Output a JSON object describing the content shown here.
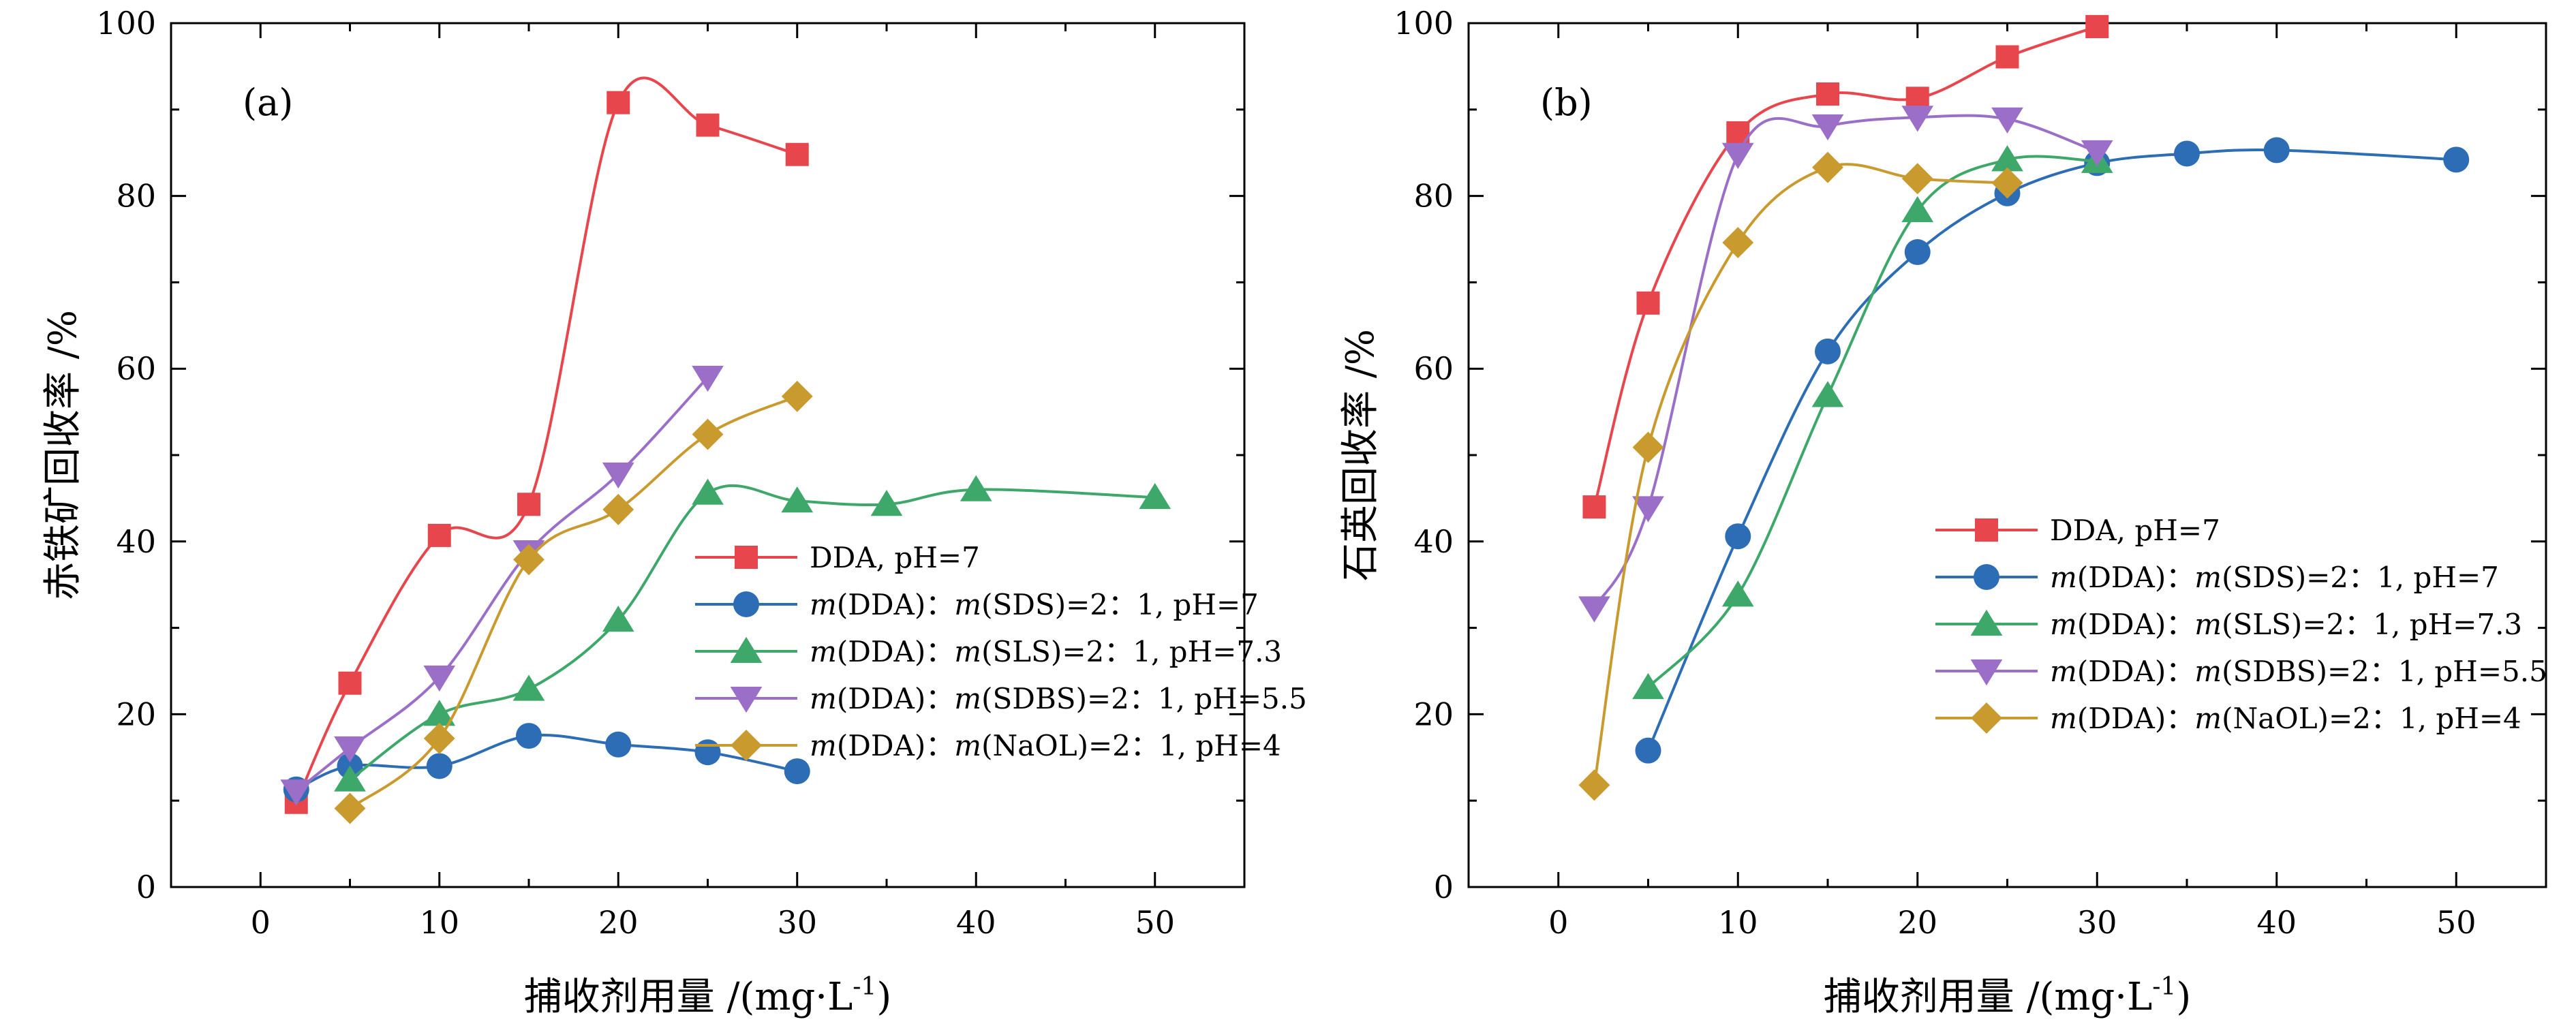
{
  "chart_data": [
    {
      "type": "scatter",
      "panel_label": "(a)",
      "xlabel": "捕收剂用量 /(mg·L",
      "xlabel_sup": "-1",
      "xlabel_close": ")",
      "ylabel": "赤铁矿回收率 /%",
      "xlim": [
        -5,
        55
      ],
      "ylim": [
        0,
        100
      ],
      "xticks": [
        0,
        10,
        20,
        30,
        40,
        50
      ],
      "yticks": [
        0,
        20,
        40,
        60,
        80,
        100
      ],
      "grid": false,
      "legend_position": "center-right",
      "series": [
        {
          "name": "DDA, pH=7",
          "color": "#e8464d",
          "marker": "square",
          "x": [
            2,
            5,
            10,
            15,
            20,
            25,
            30
          ],
          "y": [
            9.8,
            23.6,
            40.7,
            44.3,
            90.8,
            88.2,
            84.8
          ]
        },
        {
          "name": "m(DDA)：m(SDS)=2：1, pH=7",
          "color": "#2c6db5",
          "marker": "circle",
          "x": [
            2,
            5,
            10,
            15,
            20,
            25,
            30
          ],
          "y": [
            11.3,
            14.0,
            14.0,
            17.5,
            16.5,
            15.6,
            13.4
          ]
        },
        {
          "name": "m(DDA)：m(SLS)=2：1, pH=7.3",
          "color": "#3ea86a",
          "marker": "triangle-up",
          "x": [
            5,
            10,
            15,
            20,
            25,
            30,
            35,
            40,
            50
          ],
          "y": [
            12.4,
            20.0,
            22.9,
            30.9,
            45.6,
            44.7,
            44.3,
            46.0,
            45.1
          ]
        },
        {
          "name": "m(DDA)：m(SDBS)=2：1, pH=5.5",
          "color": "#9b6fc8",
          "marker": "triangle-down",
          "x": [
            2,
            5,
            10,
            15,
            20,
            25
          ],
          "y": [
            11.1,
            16.1,
            24.3,
            38.8,
            47.8,
            59.0
          ]
        },
        {
          "name": "m(DDA)：m(NaOL)=2：1, pH=4",
          "color": "#c99a2e",
          "marker": "diamond",
          "x": [
            5,
            10,
            15,
            20,
            25,
            30
          ],
          "y": [
            9.1,
            17.2,
            37.9,
            43.7,
            52.4,
            56.8
          ]
        }
      ]
    },
    {
      "type": "scatter",
      "panel_label": "(b)",
      "xlabel": "捕收剂用量 /(mg·L",
      "xlabel_sup": "-1",
      "xlabel_close": ")",
      "ylabel": "石英回收率 /%",
      "xlim": [
        -5,
        55
      ],
      "ylim": [
        0,
        100
      ],
      "xticks": [
        0,
        10,
        20,
        30,
        40,
        50
      ],
      "yticks": [
        0,
        20,
        40,
        60,
        80,
        100
      ],
      "grid": false,
      "legend_position": "center-right",
      "series": [
        {
          "name": "DDA, pH=7",
          "color": "#e8464d",
          "marker": "square",
          "x": [
            2,
            5,
            10,
            15,
            20,
            25,
            30
          ],
          "y": [
            44.0,
            67.6,
            87.3,
            91.8,
            91.3,
            96.1,
            99.6
          ]
        },
        {
          "name": "m(DDA)：m(SDS)=2：1, pH=7",
          "color": "#2c6db5",
          "marker": "circle",
          "x": [
            5,
            10,
            15,
            20,
            25,
            30,
            35,
            40,
            50
          ],
          "y": [
            15.8,
            40.6,
            62.0,
            73.5,
            80.3,
            83.8,
            84.9,
            85.3,
            84.2
          ]
        },
        {
          "name": "m(DDA)：m(SLS)=2：1, pH=7.3",
          "color": "#3ea86a",
          "marker": "triangle-up",
          "x": [
            5,
            10,
            15,
            20,
            25,
            30
          ],
          "y": [
            23.1,
            33.8,
            56.9,
            78.3,
            84.2,
            84.0
          ]
        },
        {
          "name": "m(DDA)：m(SDBS)=2：1, pH=5.5",
          "color": "#9b6fc8",
          "marker": "triangle-down",
          "x": [
            2,
            5,
            10,
            15,
            20,
            25,
            30
          ],
          "y": [
            32.3,
            43.9,
            84.8,
            88.1,
            89.1,
            88.9,
            85.1
          ]
        },
        {
          "name": "m(DDA)：m(NaOL)=2：1, pH=4",
          "color": "#c99a2e",
          "marker": "diamond",
          "x": [
            2,
            5,
            10,
            15,
            20,
            25
          ],
          "y": [
            11.8,
            50.9,
            74.6,
            83.3,
            82.0,
            81.5
          ]
        }
      ]
    }
  ]
}
